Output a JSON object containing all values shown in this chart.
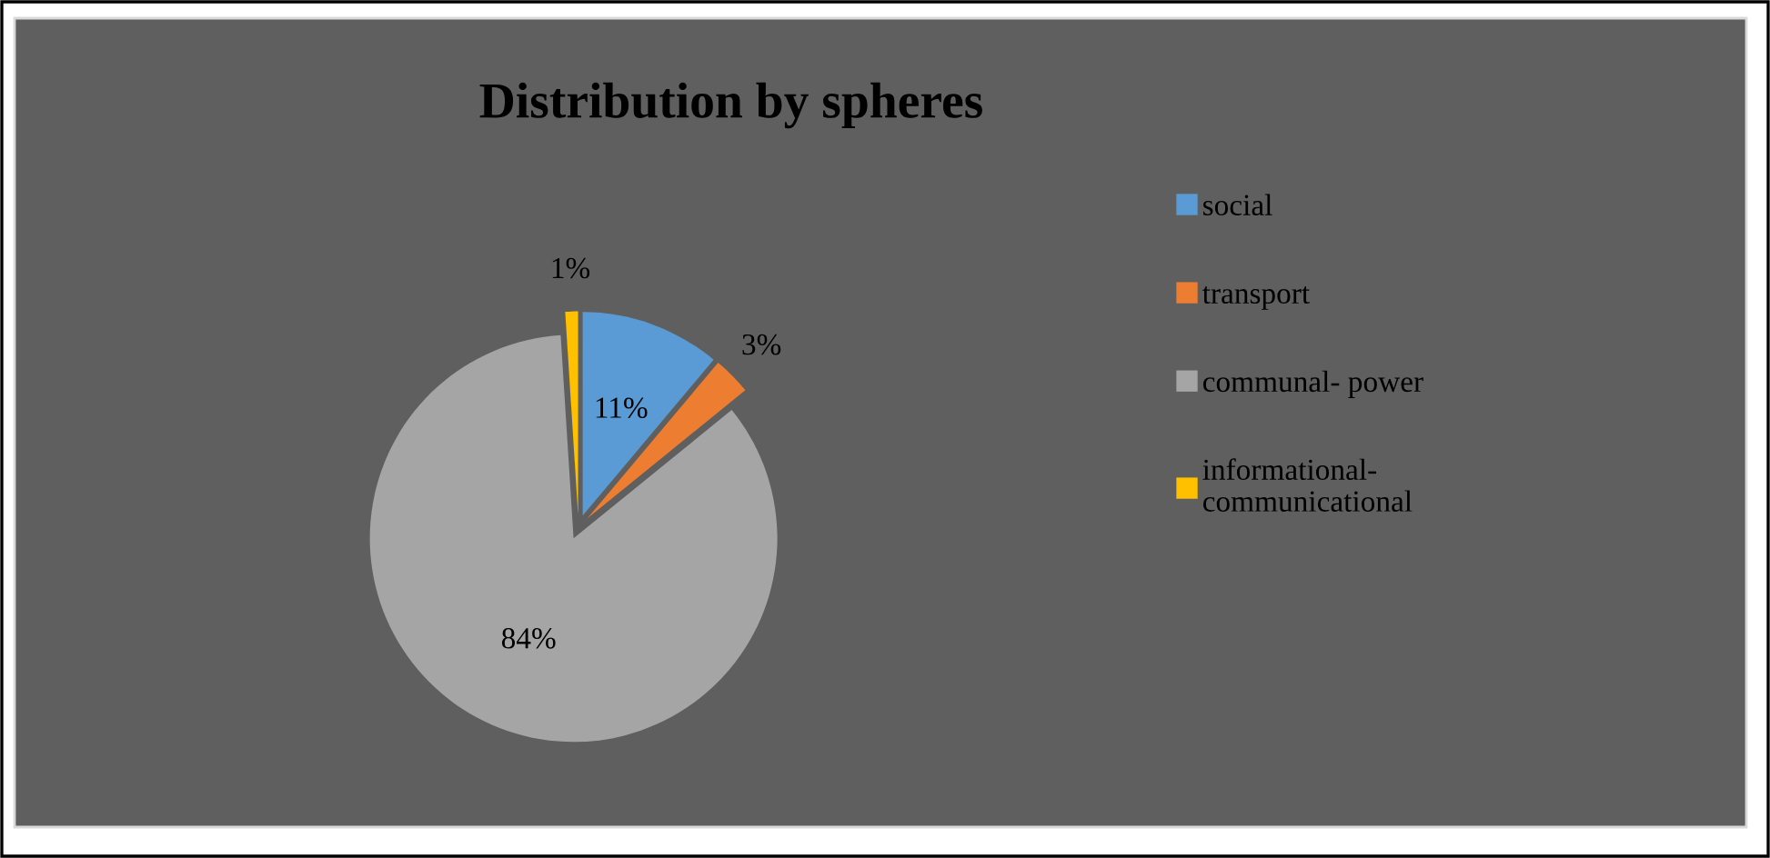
{
  "chart_data": {
    "type": "pie",
    "title": "Distribution by spheres",
    "categories": [
      "social",
      "transport",
      "communal- power",
      "informational- communicational"
    ],
    "values": [
      11,
      3,
      84,
      1
    ],
    "colors": [
      "#5b9bd5",
      "#ed7d31",
      "#a5a5a5",
      "#ffc000"
    ],
    "value_labels": [
      "11%",
      "3%",
      "84%",
      "1%"
    ],
    "legend": "right"
  }
}
